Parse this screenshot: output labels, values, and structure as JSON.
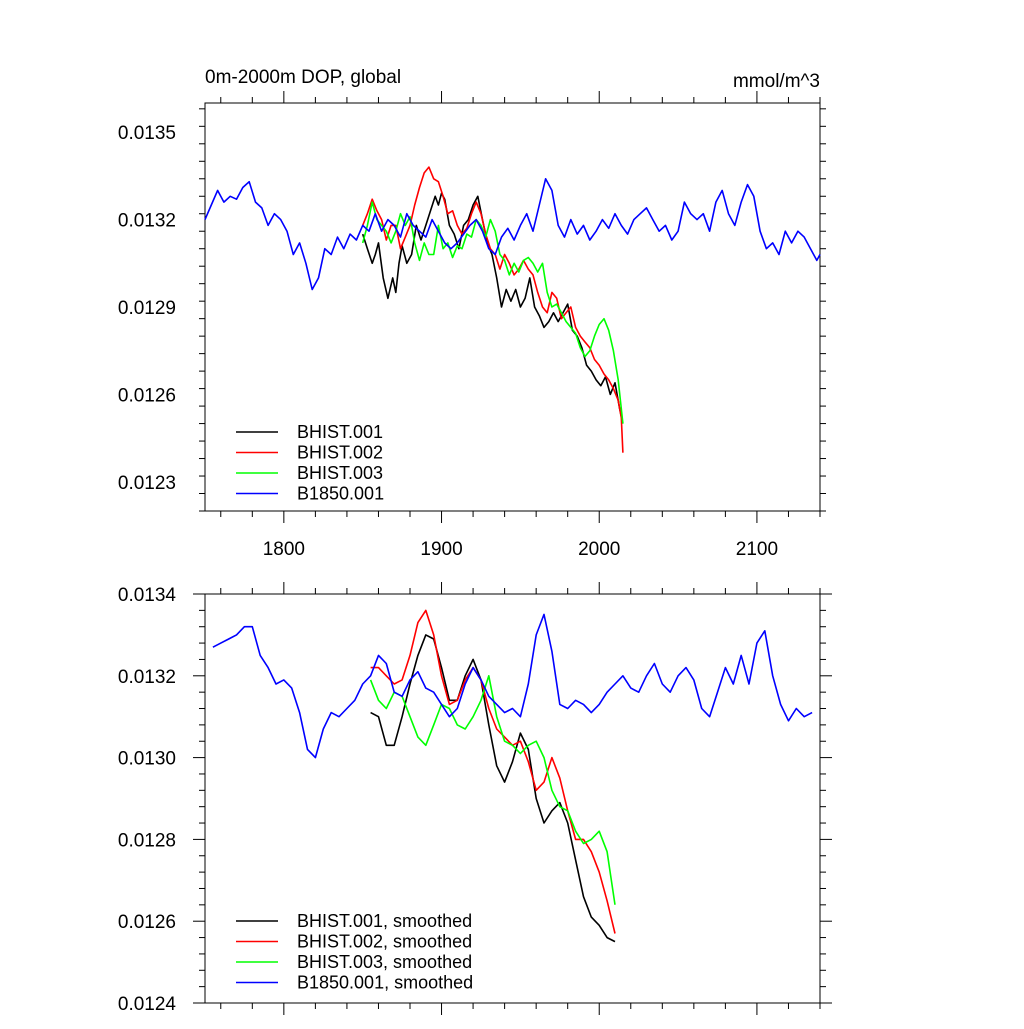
{
  "colors": {
    "black": "#000000",
    "red": "#ff0000",
    "green": "#00ff00",
    "blue": "#0000ff"
  },
  "chart_data": [
    {
      "type": "line",
      "title": "0m-2000m DOP, global",
      "units": "mmol/m^3",
      "xlim": [
        1750,
        2140
      ],
      "ylim": [
        0.0122,
        0.0136
      ],
      "xticks": [
        1800,
        1900,
        2000,
        2100
      ],
      "xtick_labels": [
        "1800",
        "1900",
        "2000",
        "2100"
      ],
      "yticks": [
        0.0123,
        0.0126,
        0.0129,
        0.0132,
        0.0135
      ],
      "ytick_labels": [
        "0.0123",
        "0.0126",
        "0.0129",
        "0.0132",
        "0.0135"
      ],
      "legend_position": "bottom-left",
      "series": [
        {
          "name": "BHIST.001",
          "color": "#000000",
          "x": [
            1850,
            1853,
            1856,
            1858,
            1860,
            1863,
            1866,
            1869,
            1871,
            1873,
            1875,
            1878,
            1881,
            1884,
            1887,
            1890,
            1893,
            1896,
            1898,
            1900,
            1902,
            1905,
            1908,
            1911,
            1914,
            1917,
            1920,
            1923,
            1926,
            1929,
            1932,
            1935,
            1938,
            1941,
            1944,
            1947,
            1950,
            1953,
            1956,
            1959,
            1962,
            1965,
            1968,
            1971,
            1974,
            1977,
            1980,
            1983,
            1986,
            1989,
            1992,
            1995,
            1998,
            2001,
            2004,
            2007,
            2010,
            2013,
            2015
          ],
          "y": [
            0.01315,
            0.0131,
            0.01305,
            0.01308,
            0.01312,
            0.013,
            0.01293,
            0.013,
            0.01295,
            0.01305,
            0.01311,
            0.01305,
            0.01308,
            0.01318,
            0.01313,
            0.01318,
            0.01323,
            0.01328,
            0.01325,
            0.01329,
            0.01327,
            0.01318,
            0.01315,
            0.0131,
            0.01318,
            0.0132,
            0.01325,
            0.01328,
            0.0132,
            0.01312,
            0.01308,
            0.013,
            0.0129,
            0.01296,
            0.01292,
            0.01296,
            0.0129,
            0.01293,
            0.013,
            0.0129,
            0.01287,
            0.01283,
            0.01285,
            0.01288,
            0.01285,
            0.01288,
            0.01291,
            0.01282,
            0.0128,
            0.01276,
            0.0127,
            0.01268,
            0.01265,
            0.01263,
            0.01266,
            0.0126,
            0.01264,
            0.01255,
            0.0125
          ]
        },
        {
          "name": "BHIST.002",
          "color": "#ff0000",
          "x": [
            1850,
            1853,
            1856,
            1859,
            1862,
            1865,
            1868,
            1871,
            1874,
            1877,
            1880,
            1883,
            1886,
            1889,
            1892,
            1895,
            1898,
            1901,
            1904,
            1907,
            1910,
            1913,
            1916,
            1919,
            1922,
            1925,
            1928,
            1931,
            1934,
            1937,
            1940,
            1943,
            1946,
            1949,
            1952,
            1955,
            1958,
            1961,
            1964,
            1967,
            1970,
            1973,
            1976,
            1979,
            1982,
            1985,
            1988,
            1991,
            1994,
            1997,
            2000,
            2003,
            2006,
            2009,
            2012,
            2014,
            2015
          ],
          "y": [
            0.01318,
            0.01322,
            0.01327,
            0.01323,
            0.0132,
            0.01313,
            0.01318,
            0.01318,
            0.0131,
            0.01314,
            0.01318,
            0.01325,
            0.01331,
            0.01336,
            0.01338,
            0.01334,
            0.01333,
            0.01328,
            0.01322,
            0.01323,
            0.01318,
            0.01315,
            0.01317,
            0.01322,
            0.01326,
            0.01322,
            0.01315,
            0.0131,
            0.01308,
            0.01303,
            0.01308,
            0.01305,
            0.01301,
            0.01303,
            0.01306,
            0.01303,
            0.01301,
            0.01295,
            0.0129,
            0.01288,
            0.01295,
            0.01293,
            0.01286,
            0.01288,
            0.0129,
            0.01283,
            0.0128,
            0.01278,
            0.01276,
            0.01272,
            0.0127,
            0.01267,
            0.01265,
            0.01262,
            0.01258,
            0.01252,
            0.0124
          ]
        },
        {
          "name": "BHIST.003",
          "color": "#00ff00",
          "x": [
            1850,
            1853,
            1856,
            1859,
            1862,
            1865,
            1868,
            1871,
            1874,
            1877,
            1880,
            1883,
            1886,
            1889,
            1892,
            1895,
            1898,
            1901,
            1904,
            1907,
            1910,
            1913,
            1916,
            1919,
            1922,
            1925,
            1928,
            1931,
            1934,
            1937,
            1940,
            1943,
            1946,
            1949,
            1952,
            1955,
            1958,
            1961,
            1964,
            1967,
            1970,
            1973,
            1976,
            1979,
            1982,
            1985,
            1988,
            1991,
            1994,
            1997,
            2000,
            2003,
            2006,
            2009,
            2012,
            2015
          ],
          "y": [
            0.01312,
            0.01318,
            0.01326,
            0.0132,
            0.01318,
            0.01316,
            0.01312,
            0.01316,
            0.01322,
            0.01318,
            0.01321,
            0.01312,
            0.01306,
            0.01312,
            0.01308,
            0.01308,
            0.01318,
            0.0131,
            0.01312,
            0.01307,
            0.01311,
            0.0131,
            0.01315,
            0.01314,
            0.0132,
            0.01318,
            0.01314,
            0.0132,
            0.01316,
            0.01308,
            0.01306,
            0.01301,
            0.01305,
            0.01302,
            0.01306,
            0.01307,
            0.01305,
            0.01302,
            0.01305,
            0.01295,
            0.0129,
            0.01291,
            0.01288,
            0.01285,
            0.01283,
            0.01281,
            0.01276,
            0.01273,
            0.01275,
            0.0128,
            0.01284,
            0.01286,
            0.01282,
            0.01275,
            0.01265,
            0.0125
          ]
        },
        {
          "name": "B1850.001",
          "color": "#0000ff",
          "x": [
            1750,
            1754,
            1758,
            1762,
            1766,
            1770,
            1774,
            1778,
            1782,
            1786,
            1790,
            1794,
            1798,
            1802,
            1806,
            1810,
            1814,
            1818,
            1822,
            1826,
            1830,
            1834,
            1838,
            1842,
            1846,
            1850,
            1854,
            1858,
            1862,
            1866,
            1870,
            1874,
            1878,
            1882,
            1886,
            1890,
            1894,
            1898,
            1902,
            1906,
            1910,
            1914,
            1918,
            1922,
            1926,
            1930,
            1934,
            1938,
            1942,
            1946,
            1950,
            1954,
            1958,
            1962,
            1966,
            1970,
            1974,
            1978,
            1982,
            1986,
            1990,
            1994,
            1998,
            2002,
            2006,
            2010,
            2014,
            2018,
            2022,
            2026,
            2030,
            2034,
            2038,
            2042,
            2046,
            2050,
            2054,
            2058,
            2062,
            2066,
            2070,
            2074,
            2078,
            2082,
            2086,
            2090,
            2094,
            2098,
            2102,
            2106,
            2110,
            2114,
            2118,
            2122,
            2126,
            2130,
            2134,
            2138,
            2140
          ],
          "y": [
            0.0132,
            0.01325,
            0.0133,
            0.01326,
            0.01328,
            0.01327,
            0.01331,
            0.01333,
            0.01326,
            0.01324,
            0.01318,
            0.01322,
            0.0132,
            0.01316,
            0.01308,
            0.01312,
            0.01305,
            0.01296,
            0.013,
            0.0131,
            0.01308,
            0.01314,
            0.0131,
            0.01315,
            0.01313,
            0.01318,
            0.01316,
            0.01322,
            0.01316,
            0.0132,
            0.01318,
            0.01314,
            0.01322,
            0.01318,
            0.01316,
            0.01314,
            0.0132,
            0.01316,
            0.01312,
            0.0131,
            0.01312,
            0.01315,
            0.01318,
            0.0132,
            0.01316,
            0.0131,
            0.01308,
            0.01314,
            0.01317,
            0.01313,
            0.01318,
            0.01322,
            0.01316,
            0.01325,
            0.01334,
            0.0133,
            0.01318,
            0.01314,
            0.0132,
            0.01315,
            0.01318,
            0.01313,
            0.01316,
            0.0132,
            0.01317,
            0.01322,
            0.01318,
            0.01315,
            0.0132,
            0.01322,
            0.01324,
            0.0132,
            0.01316,
            0.01318,
            0.01313,
            0.01316,
            0.01326,
            0.01322,
            0.0132,
            0.01322,
            0.01316,
            0.01326,
            0.0133,
            0.01322,
            0.01318,
            0.01326,
            0.01332,
            0.01328,
            0.01316,
            0.0131,
            0.01312,
            0.01308,
            0.01316,
            0.01312,
            0.01316,
            0.01314,
            0.0131,
            0.01306,
            0.01308
          ]
        }
      ]
    },
    {
      "type": "line",
      "xlim": [
        1750,
        2140
      ],
      "ylim": [
        0.0124,
        0.0134
      ],
      "xticks": [
        1800,
        1900,
        2000,
        2100
      ],
      "yticks": [
        0.0124,
        0.0126,
        0.0128,
        0.013,
        0.0132,
        0.0134
      ],
      "ytick_labels": [
        "0.0124",
        "0.0126",
        "0.0128",
        "0.0130",
        "0.0132",
        "0.0134"
      ],
      "legend_position": "bottom-left",
      "series": [
        {
          "name": "BHIST.001, smoothed",
          "color": "#000000",
          "x": [
            1855,
            1860,
            1865,
            1870,
            1875,
            1880,
            1885,
            1890,
            1895,
            1900,
            1905,
            1910,
            1915,
            1920,
            1925,
            1930,
            1935,
            1940,
            1945,
            1950,
            1955,
            1960,
            1965,
            1970,
            1975,
            1980,
            1985,
            1990,
            1995,
            2000,
            2005,
            2010
          ],
          "y": [
            0.01311,
            0.0131,
            0.01303,
            0.01303,
            0.0131,
            0.01318,
            0.01325,
            0.0133,
            0.01329,
            0.01322,
            0.01314,
            0.01314,
            0.0132,
            0.01324,
            0.01319,
            0.01308,
            0.01298,
            0.01294,
            0.01299,
            0.01306,
            0.01302,
            0.0129,
            0.01284,
            0.01287,
            0.01289,
            0.01284,
            0.01275,
            0.01266,
            0.01261,
            0.01259,
            0.01256,
            0.01255
          ]
        },
        {
          "name": "BHIST.002, smoothed",
          "color": "#ff0000",
          "x": [
            1855,
            1860,
            1865,
            1870,
            1875,
            1880,
            1885,
            1890,
            1895,
            1900,
            1905,
            1910,
            1915,
            1920,
            1925,
            1930,
            1935,
            1940,
            1945,
            1950,
            1955,
            1960,
            1965,
            1970,
            1975,
            1980,
            1985,
            1990,
            1995,
            2000,
            2005,
            2010
          ],
          "y": [
            0.01322,
            0.01322,
            0.0132,
            0.01318,
            0.01319,
            0.01325,
            0.01333,
            0.01336,
            0.0133,
            0.0132,
            0.01313,
            0.01314,
            0.01319,
            0.01322,
            0.01319,
            0.01312,
            0.01307,
            0.01305,
            0.01303,
            0.01304,
            0.01299,
            0.01292,
            0.01294,
            0.013,
            0.01295,
            0.01287,
            0.0128,
            0.0128,
            0.01277,
            0.01272,
            0.01265,
            0.01257
          ]
        },
        {
          "name": "BHIST.003, smoothed",
          "color": "#00ff00",
          "x": [
            1855,
            1860,
            1865,
            1870,
            1875,
            1880,
            1885,
            1890,
            1895,
            1900,
            1905,
            1910,
            1915,
            1920,
            1925,
            1930,
            1935,
            1940,
            1945,
            1950,
            1955,
            1960,
            1965,
            1970,
            1975,
            1980,
            1985,
            1990,
            1995,
            2000,
            2005,
            2010
          ],
          "y": [
            0.01319,
            0.01314,
            0.01312,
            0.01316,
            0.01315,
            0.0131,
            0.01305,
            0.01303,
            0.01308,
            0.01313,
            0.01312,
            0.01308,
            0.01307,
            0.0131,
            0.01314,
            0.0132,
            0.0131,
            0.01304,
            0.01303,
            0.01301,
            0.01303,
            0.01304,
            0.013,
            0.01292,
            0.01288,
            0.01287,
            0.01282,
            0.01279,
            0.0128,
            0.01282,
            0.01277,
            0.01264
          ]
        },
        {
          "name": "B1850.001, smoothed",
          "color": "#0000ff",
          "x": [
            1755,
            1760,
            1765,
            1770,
            1775,
            1780,
            1785,
            1790,
            1795,
            1800,
            1805,
            1810,
            1815,
            1820,
            1825,
            1830,
            1835,
            1840,
            1845,
            1850,
            1855,
            1860,
            1865,
            1870,
            1875,
            1880,
            1885,
            1890,
            1895,
            1900,
            1905,
            1910,
            1915,
            1920,
            1925,
            1930,
            1935,
            1940,
            1945,
            1950,
            1955,
            1960,
            1965,
            1970,
            1975,
            1980,
            1985,
            1990,
            1995,
            2000,
            2005,
            2010,
            2015,
            2020,
            2025,
            2030,
            2035,
            2040,
            2045,
            2050,
            2055,
            2060,
            2065,
            2070,
            2075,
            2080,
            2085,
            2090,
            2095,
            2100,
            2105,
            2110,
            2115,
            2120,
            2125,
            2130,
            2135
          ],
          "y": [
            0.01327,
            0.01328,
            0.01329,
            0.0133,
            0.01332,
            0.01332,
            0.01325,
            0.01322,
            0.01318,
            0.01319,
            0.01317,
            0.01311,
            0.01302,
            0.013,
            0.01307,
            0.01311,
            0.0131,
            0.01312,
            0.01314,
            0.01318,
            0.0132,
            0.01325,
            0.01323,
            0.01316,
            0.01315,
            0.01319,
            0.01321,
            0.01317,
            0.01316,
            0.01313,
            0.0131,
            0.01312,
            0.01318,
            0.01322,
            0.01319,
            0.01315,
            0.01313,
            0.01311,
            0.01312,
            0.0131,
            0.01318,
            0.0133,
            0.01335,
            0.01326,
            0.01313,
            0.01312,
            0.01314,
            0.01313,
            0.01311,
            0.01313,
            0.01316,
            0.01318,
            0.0132,
            0.01317,
            0.01316,
            0.0132,
            0.01323,
            0.01318,
            0.01316,
            0.0132,
            0.01322,
            0.01319,
            0.01312,
            0.0131,
            0.01316,
            0.01322,
            0.01318,
            0.01325,
            0.01318,
            0.01328,
            0.01331,
            0.0132,
            0.01313,
            0.01309,
            0.01312,
            0.0131,
            0.01311
          ]
        }
      ]
    }
  ]
}
